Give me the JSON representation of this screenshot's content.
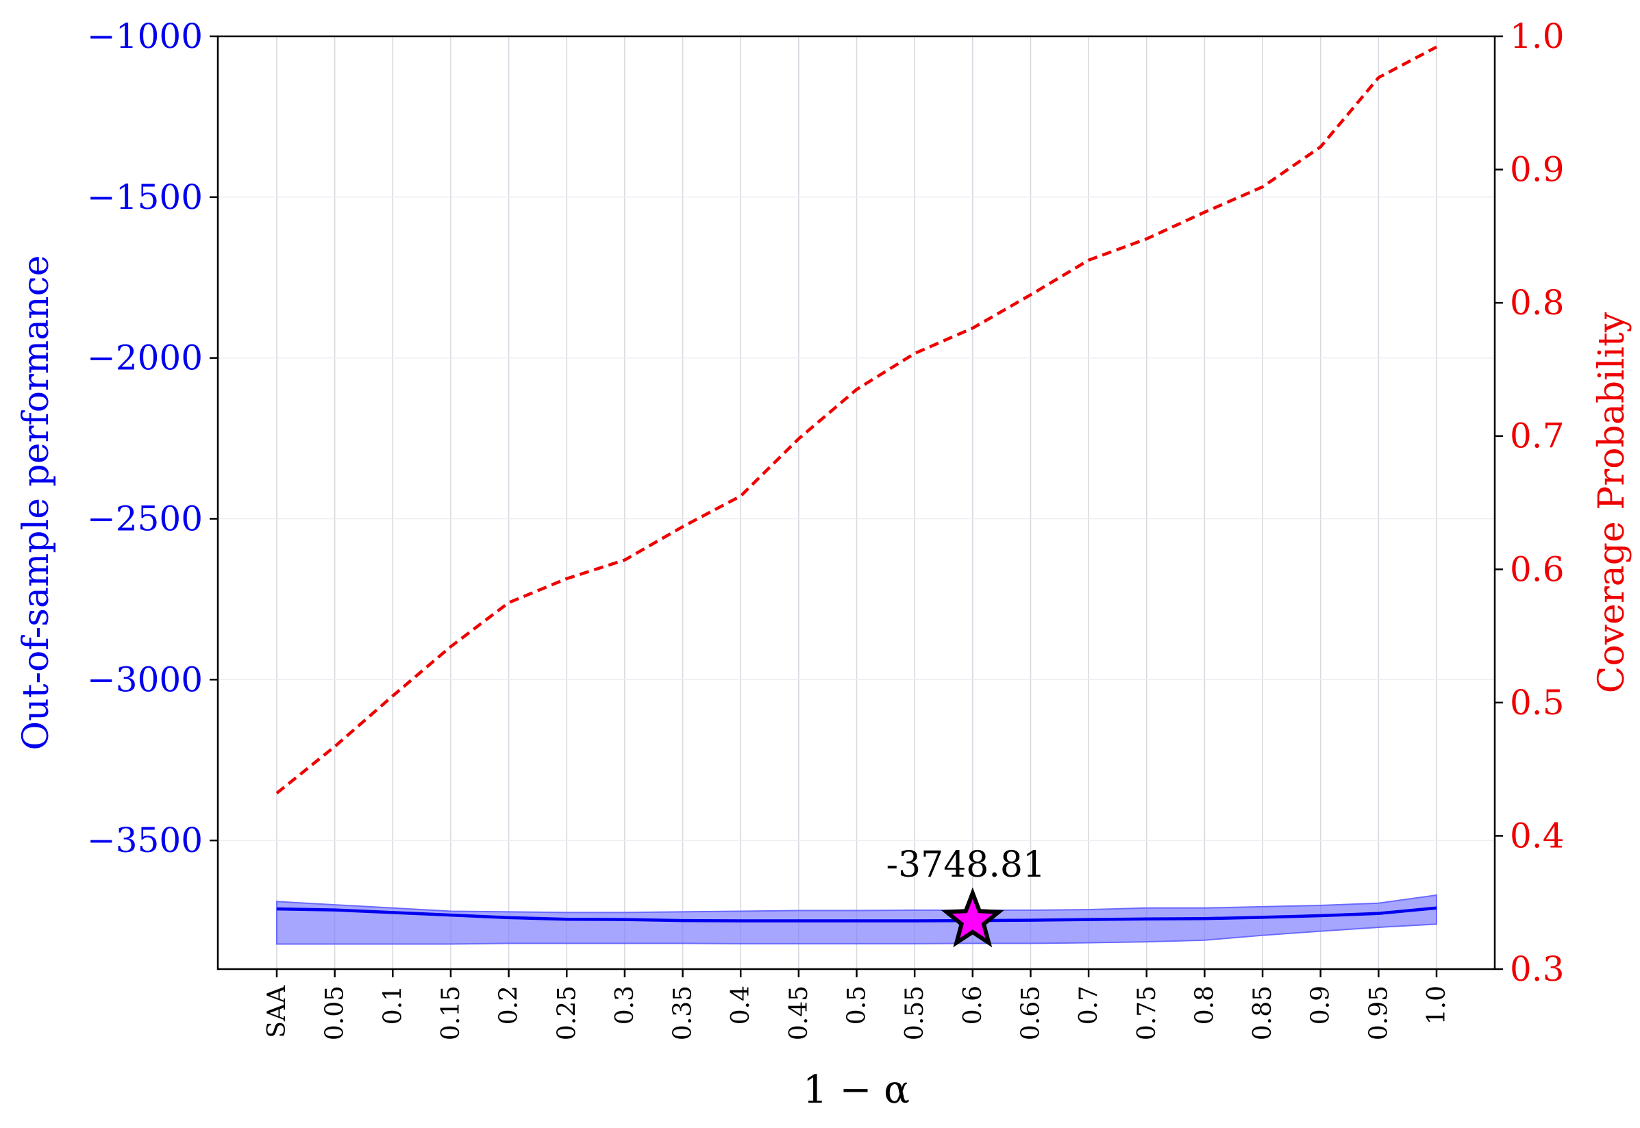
{
  "chart_data": {
    "type": "line",
    "categories": [
      "SAA",
      "0.05",
      "0.1",
      "0.15",
      "0.2",
      "0.25",
      "0.3",
      "0.35",
      "0.4",
      "0.45",
      "0.5",
      "0.55",
      "0.6",
      "0.65",
      "0.7",
      "0.75",
      "0.8",
      "0.85",
      "0.9",
      "0.95",
      "1.0"
    ],
    "xlabel": "1 − α",
    "ylabel_left": "Out-of-sample performance",
    "ylabel_right": "Coverage Probability",
    "ylim_left": [
      -3900,
      -1000
    ],
    "yticks_left": [
      -1000,
      -1500,
      -2000,
      -2500,
      -3000,
      -3500
    ],
    "ytick_labels_left": [
      "−1000",
      "−1500",
      "−2000",
      "−2500",
      "−3000",
      "−3500"
    ],
    "ylim_right": [
      0.3,
      1.0
    ],
    "yticks_right": [
      0.3,
      0.4,
      0.5,
      0.6,
      0.7,
      0.8,
      0.9,
      1.0
    ],
    "ytick_labels_right": [
      "0.3",
      "0.4",
      "0.5",
      "0.6",
      "0.7",
      "0.8",
      "0.9",
      "1.0"
    ],
    "grid": true,
    "series": [
      {
        "axis": "left",
        "style": "solid",
        "color": "#0000ee",
        "values": [
          -3713,
          -3716,
          -3724,
          -3732,
          -3740,
          -3745,
          -3746,
          -3749,
          -3750,
          -3750,
          -3750,
          -3750,
          -3749,
          -3748,
          -3746,
          -3744,
          -3743,
          -3739,
          -3734,
          -3727,
          -3710
        ]
      },
      {
        "axis": "left",
        "style": "band",
        "color": "#8080ff",
        "upper": [
          -3690,
          -3700,
          -3710,
          -3720,
          -3722,
          -3724,
          -3724,
          -3722,
          -3720,
          -3718,
          -3718,
          -3717,
          -3717,
          -3717,
          -3715,
          -3710,
          -3710,
          -3706,
          -3702,
          -3695,
          -3670
        ],
        "lower": [
          -3822,
          -3822,
          -3822,
          -3822,
          -3820,
          -3820,
          -3820,
          -3820,
          -3821,
          -3821,
          -3821,
          -3821,
          -3820,
          -3820,
          -3818,
          -3815,
          -3810,
          -3795,
          -3782,
          -3770,
          -3760
        ]
      },
      {
        "axis": "right",
        "style": "dashed",
        "color": "#ee0000",
        "values": [
          0.432,
          0.467,
          0.505,
          0.542,
          0.575,
          0.593,
          0.607,
          0.632,
          0.655,
          0.698,
          0.735,
          0.762,
          0.781,
          0.806,
          0.832,
          0.848,
          0.868,
          0.887,
          0.917,
          0.969,
          0.992
        ]
      }
    ],
    "highlight": {
      "index": 12,
      "value": -3748.81,
      "label": "-3748.81",
      "color": "#ff00ff"
    }
  }
}
